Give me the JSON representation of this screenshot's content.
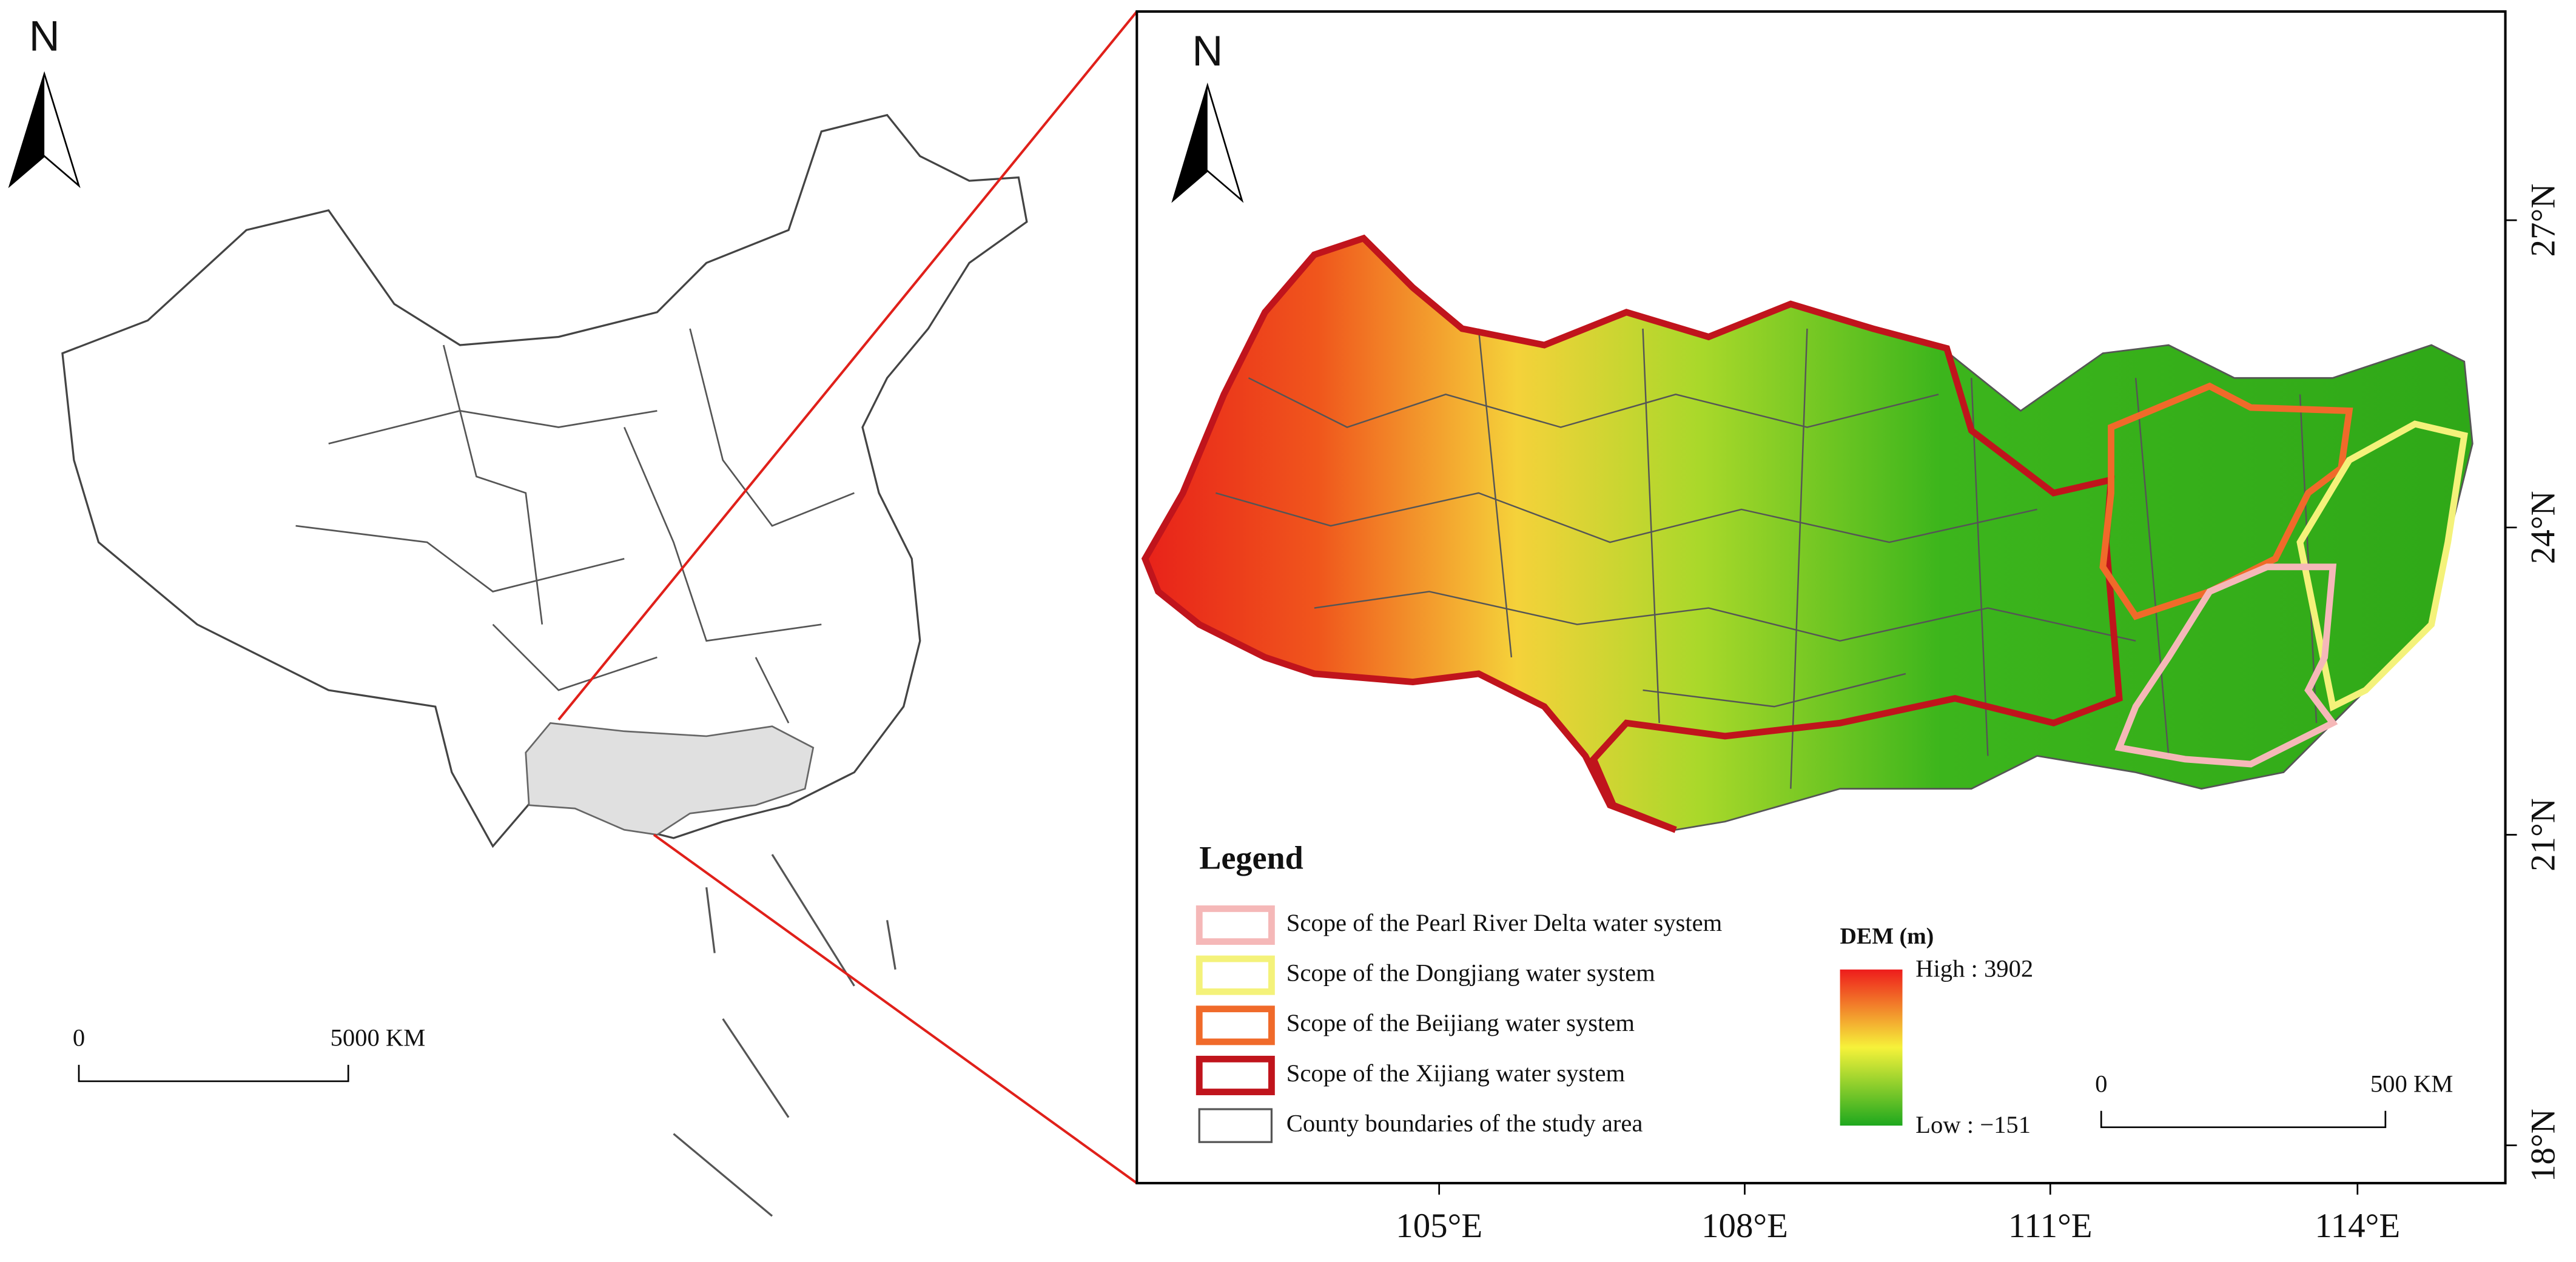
{
  "overview_map": {
    "north": "N",
    "scale_bar": {
      "start": "0",
      "end": "5000 KM"
    }
  },
  "study_area_map": {
    "north": "N",
    "latitude_labels": [
      "27°N",
      "24°N",
      "21°N",
      "18°N"
    ],
    "longitude_labels": [
      "105°E",
      "108°E",
      "111°E",
      "114°E"
    ],
    "legend": {
      "title": "Legend",
      "items": [
        {
          "label": "Scope of the Pearl River Delta water system",
          "color": "#f5b8b8"
        },
        {
          "label": "Scope of the Dongjiang water system",
          "color": "#f4f27a"
        },
        {
          "label": "Scope of the Beijiang water system",
          "color": "#f06a2a"
        },
        {
          "label": "Scope of the Xijiang water system",
          "color": "#c0141c"
        },
        {
          "label": "County boundaries of the study area",
          "color": "#555555"
        }
      ]
    },
    "dem": {
      "title": "DEM (m)",
      "high": "High : 3902",
      "low": "Low : −151"
    },
    "scale_bar": {
      "start": "0",
      "end": "500 KM"
    }
  }
}
